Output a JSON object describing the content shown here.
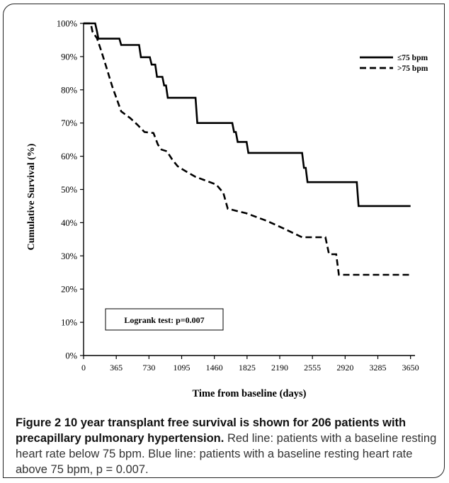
{
  "caption": {
    "figure_label": "Figure 2",
    "title": "10 year transplant free survival is shown for 206 patients with precapillary pulmonary hypertension.",
    "text": "Red line: patients with a baseline resting heart rate below 75 bpm. Blue line: patients with a baseline resting heart rate above 75 bpm, p = 0.007."
  },
  "annotation": "Logrank test: p=0.007",
  "chart_data": {
    "type": "line",
    "step": true,
    "xlabel": "Time from baseline (days)",
    "ylabel": "Cumulative Survival (%)",
    "xlim": [
      0,
      3700
    ],
    "ylim": [
      0,
      100
    ],
    "x_ticks": [
      0,
      365,
      730,
      1095,
      1460,
      1825,
      2190,
      2555,
      2920,
      3285,
      3650
    ],
    "y_ticks": [
      0,
      10,
      20,
      30,
      40,
      50,
      60,
      70,
      80,
      90,
      100
    ],
    "y_tick_labels": [
      "0%",
      "10%",
      "20%",
      "30%",
      "40%",
      "50%",
      "60%",
      "70%",
      "80%",
      "90%",
      "100%"
    ],
    "grid": false,
    "legend_position": "top-right",
    "series": [
      {
        "name": "≤75 bpm",
        "style": "solid",
        "color": "#000000",
        "points": [
          [
            0,
            100
          ],
          [
            130,
            100
          ],
          [
            150,
            97.5
          ],
          [
            165,
            95.4
          ],
          [
            400,
            95.4
          ],
          [
            420,
            93.5
          ],
          [
            620,
            93.5
          ],
          [
            640,
            89.8
          ],
          [
            740,
            89.8
          ],
          [
            760,
            87.6
          ],
          [
            800,
            87.6
          ],
          [
            820,
            83.9
          ],
          [
            880,
            83.9
          ],
          [
            900,
            81.3
          ],
          [
            920,
            81.3
          ],
          [
            940,
            77.6
          ],
          [
            1250,
            77.6
          ],
          [
            1270,
            70
          ],
          [
            1660,
            70
          ],
          [
            1680,
            67.3
          ],
          [
            1700,
            67.3
          ],
          [
            1720,
            64.3
          ],
          [
            1820,
            64.3
          ],
          [
            1840,
            61
          ],
          [
            2440,
            61
          ],
          [
            2460,
            56.5
          ],
          [
            2480,
            56.5
          ],
          [
            2500,
            52.2
          ],
          [
            3050,
            52.2
          ],
          [
            3070,
            45
          ],
          [
            3650,
            45
          ]
        ]
      },
      {
        "name": ">75 bpm",
        "style": "dashed",
        "color": "#000000",
        "points": [
          [
            0,
            100
          ],
          [
            80,
            100
          ],
          [
            100,
            97.5
          ],
          [
            150,
            95.5
          ],
          [
            200,
            91.5
          ],
          [
            250,
            87.2
          ],
          [
            320,
            81
          ],
          [
            380,
            76.5
          ],
          [
            420,
            73.5
          ],
          [
            520,
            71.5
          ],
          [
            600,
            69.5
          ],
          [
            680,
            67.3
          ],
          [
            780,
            67
          ],
          [
            830,
            63.5
          ],
          [
            870,
            62
          ],
          [
            930,
            61.5
          ],
          [
            990,
            59
          ],
          [
            1050,
            57
          ],
          [
            1120,
            55.8
          ],
          [
            1250,
            53.8
          ],
          [
            1350,
            52.8
          ],
          [
            1480,
            51.5
          ],
          [
            1560,
            49
          ],
          [
            1610,
            44.2
          ],
          [
            1820,
            42.8
          ],
          [
            2050,
            40.5
          ],
          [
            2230,
            38.3
          ],
          [
            2440,
            35.6
          ],
          [
            2700,
            35.6
          ],
          [
            2740,
            30.5
          ],
          [
            2820,
            30.5
          ],
          [
            2850,
            24.3
          ],
          [
            3650,
            24.3
          ]
        ]
      }
    ]
  }
}
